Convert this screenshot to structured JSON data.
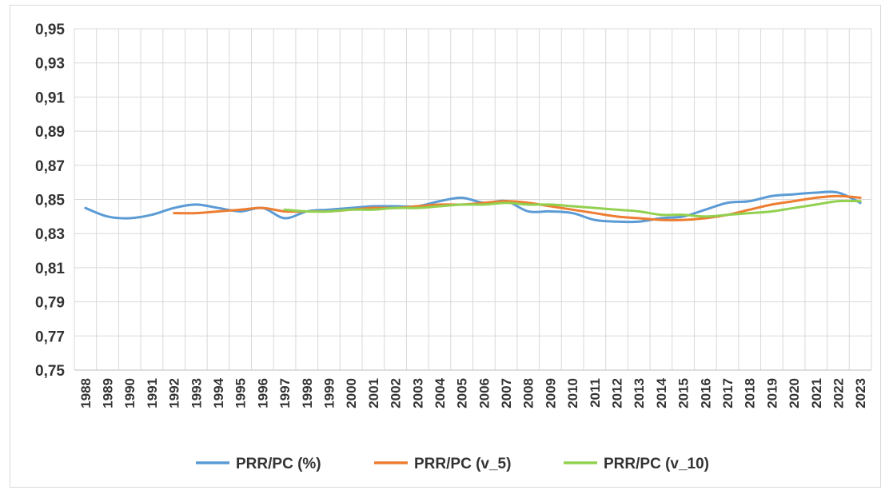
{
  "chart_data": {
    "type": "line",
    "title": "",
    "xlabel": "",
    "ylabel": "",
    "ylim": [
      0.75,
      0.95
    ],
    "y_ticks": [
      "0,75",
      "0,77",
      "0,79",
      "0,81",
      "0,83",
      "0,85",
      "0,87",
      "0,89",
      "0,91",
      "0,93",
      "0,95"
    ],
    "categories": [
      "1988",
      "1989",
      "1990",
      "1991",
      "1992",
      "1993",
      "1994",
      "1995",
      "1996",
      "1997",
      "1998",
      "1999",
      "2000",
      "2001",
      "2002",
      "2003",
      "2004",
      "2005",
      "2006",
      "2007",
      "2008",
      "2009",
      "2010",
      "2011",
      "2012",
      "2013",
      "2014",
      "2015",
      "2016",
      "2017",
      "2018",
      "2019",
      "2020",
      "2021",
      "2022",
      "2023"
    ],
    "grid": true,
    "legend_position": "bottom",
    "series": [
      {
        "name": "PRR/PC (%)",
        "color": "#5b9bd5",
        "values": [
          0.845,
          0.84,
          0.839,
          0.841,
          0.845,
          0.847,
          0.845,
          0.843,
          0.845,
          0.839,
          0.843,
          0.844,
          0.845,
          0.846,
          0.846,
          0.846,
          0.849,
          0.851,
          0.848,
          0.849,
          0.843,
          0.843,
          0.842,
          0.838,
          0.837,
          0.837,
          0.839,
          0.84,
          0.844,
          0.848,
          0.849,
          0.852,
          0.853,
          0.854,
          0.854,
          0.848
        ]
      },
      {
        "name": "PRR/PC (v_5)",
        "color": "#ed7d31",
        "values": [
          null,
          null,
          null,
          null,
          0.842,
          0.842,
          0.843,
          0.844,
          0.845,
          0.843,
          0.843,
          0.843,
          0.844,
          0.845,
          0.845,
          0.846,
          0.847,
          0.847,
          0.848,
          0.849,
          0.848,
          0.846,
          0.844,
          0.842,
          0.84,
          0.839,
          0.838,
          0.838,
          0.839,
          0.841,
          0.844,
          0.847,
          0.849,
          0.851,
          0.852,
          0.851
        ]
      },
      {
        "name": "PRR/PC (v_10)",
        "color": "#92d050",
        "values": [
          null,
          null,
          null,
          null,
          null,
          null,
          null,
          null,
          null,
          0.844,
          0.843,
          0.843,
          0.844,
          0.844,
          0.845,
          0.845,
          0.846,
          0.847,
          0.847,
          0.848,
          0.847,
          0.847,
          0.846,
          0.845,
          0.844,
          0.843,
          0.841,
          0.841,
          0.84,
          0.841,
          0.842,
          0.843,
          0.845,
          0.847,
          0.849,
          0.849
        ]
      }
    ]
  }
}
